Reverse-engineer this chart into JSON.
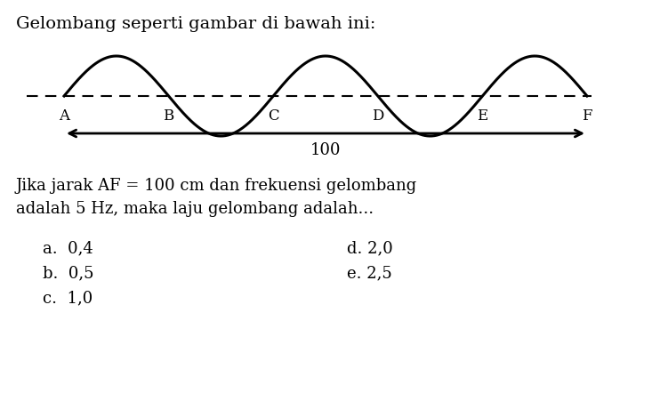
{
  "title": "Gelombang seperti gambar di bawah ini:",
  "wave_labels": [
    "A",
    "B",
    "C",
    "D",
    "E",
    "F"
  ],
  "arrow_label": "100",
  "text_line1": "Jika jarak AF = 100 cm dan frekuensi gelombang",
  "text_line2": "adalah 5 Hz, maka laju gelombang adalah...",
  "options_left": [
    "a.  0,4",
    "b.  0,5",
    "c.  1,0"
  ],
  "options_right": [
    "d. 2,0",
    "e. 2,5"
  ],
  "bg_color": "#ffffff",
  "wave_color": "#000000",
  "dashed_color": "#000000",
  "text_color": "#000000",
  "font_family": "serif",
  "title_fontsize": 14,
  "body_fontsize": 13,
  "option_fontsize": 13,
  "wave_linewidth": 2.2,
  "dash_linewidth": 1.5,
  "arrow_linewidth": 2.0
}
